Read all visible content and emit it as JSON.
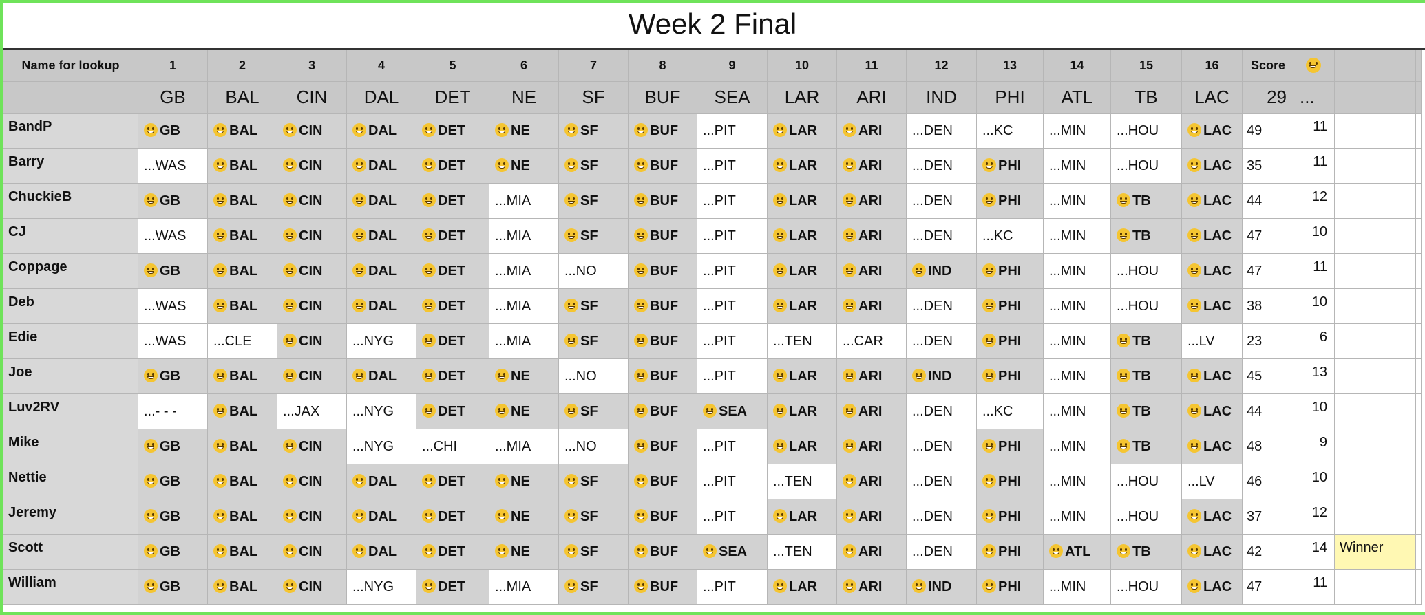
{
  "title": "Week 2 Final",
  "columns": {
    "name_header": "Name for lookup",
    "game_numbers": [
      "1",
      "2",
      "3",
      "4",
      "5",
      "6",
      "7",
      "8",
      "9",
      "10",
      "11",
      "12",
      "13",
      "14",
      "15",
      "16"
    ],
    "score_header": "Score",
    "smiley_header_icon": "grinning-face-icon",
    "winners": [
      "GB",
      "BAL",
      "CIN",
      "DAL",
      "DET",
      "NE",
      "SF",
      "BUF",
      "SEA",
      "LAR",
      "ARI",
      "IND",
      "PHI",
      "ATL",
      "TB",
      "LAC"
    ],
    "actual_score": "29",
    "ellipsis": "..."
  },
  "rows": [
    {
      "name": "BandP",
      "picks": [
        "GB",
        "BAL",
        "CIN",
        "DAL",
        "DET",
        "NE",
        "SF",
        "BUF",
        "...PIT",
        "LAR",
        "ARI",
        "...DEN",
        "...KC",
        "...MIN",
        "...HOU",
        "LAC"
      ],
      "score": "49",
      "correct": "11",
      "note": ""
    },
    {
      "name": "Barry",
      "picks": [
        "...WAS",
        "BAL",
        "CIN",
        "DAL",
        "DET",
        "NE",
        "SF",
        "BUF",
        "...PIT",
        "LAR",
        "ARI",
        "...DEN",
        "PHI",
        "...MIN",
        "...HOU",
        "LAC"
      ],
      "score": "35",
      "correct": "11",
      "note": ""
    },
    {
      "name": "ChuckieB",
      "picks": [
        "GB",
        "BAL",
        "CIN",
        "DAL",
        "DET",
        "...MIA",
        "SF",
        "BUF",
        "...PIT",
        "LAR",
        "ARI",
        "...DEN",
        "PHI",
        "...MIN",
        "TB",
        "LAC"
      ],
      "score": "44",
      "correct": "12",
      "note": ""
    },
    {
      "name": "CJ",
      "picks": [
        "...WAS",
        "BAL",
        "CIN",
        "DAL",
        "DET",
        "...MIA",
        "SF",
        "BUF",
        "...PIT",
        "LAR",
        "ARI",
        "...DEN",
        "...KC",
        "...MIN",
        "TB",
        "LAC"
      ],
      "score": "47",
      "correct": "10",
      "note": ""
    },
    {
      "name": "Coppage",
      "picks": [
        "GB",
        "BAL",
        "CIN",
        "DAL",
        "DET",
        "...MIA",
        "...NO",
        "BUF",
        "...PIT",
        "LAR",
        "ARI",
        "IND",
        "PHI",
        "...MIN",
        "...HOU",
        "LAC"
      ],
      "score": "47",
      "correct": "11",
      "note": ""
    },
    {
      "name": "Deb",
      "picks": [
        "...WAS",
        "BAL",
        "CIN",
        "DAL",
        "DET",
        "...MIA",
        "SF",
        "BUF",
        "...PIT",
        "LAR",
        "ARI",
        "...DEN",
        "PHI",
        "...MIN",
        "...HOU",
        "LAC"
      ],
      "score": "38",
      "correct": "10",
      "note": ""
    },
    {
      "name": "Edie",
      "picks": [
        "...WAS",
        "...CLE",
        "CIN",
        "...NYG",
        "DET",
        "...MIA",
        "SF",
        "BUF",
        "...PIT",
        "...TEN",
        "...CAR",
        "...DEN",
        "PHI",
        "...MIN",
        "TB",
        "...LV"
      ],
      "score": "23",
      "correct": "6",
      "note": ""
    },
    {
      "name": "Joe",
      "picks": [
        "GB",
        "BAL",
        "CIN",
        "DAL",
        "DET",
        "NE",
        "...NO",
        "BUF",
        "...PIT",
        "LAR",
        "ARI",
        "IND",
        "PHI",
        "...MIN",
        "TB",
        "LAC"
      ],
      "score": "45",
      "correct": "13",
      "note": ""
    },
    {
      "name": "Luv2RV",
      "picks": [
        "...- - -",
        "BAL",
        "...JAX",
        "...NYG",
        "DET",
        "NE",
        "SF",
        "BUF",
        "SEA",
        "LAR",
        "ARI",
        "...DEN",
        "...KC",
        "...MIN",
        "TB",
        "LAC"
      ],
      "score": "44",
      "correct": "10",
      "note": ""
    },
    {
      "name": "Mike",
      "picks": [
        "GB",
        "BAL",
        "CIN",
        "...NYG",
        "...CHI",
        "...MIA",
        "...NO",
        "BUF",
        "...PIT",
        "LAR",
        "ARI",
        "...DEN",
        "PHI",
        "...MIN",
        "TB",
        "LAC"
      ],
      "score": "48",
      "correct": "9",
      "note": ""
    },
    {
      "name": "Nettie",
      "picks": [
        "GB",
        "BAL",
        "CIN",
        "DAL",
        "DET",
        "NE",
        "SF",
        "BUF",
        "...PIT",
        "...TEN",
        "ARI",
        "...DEN",
        "PHI",
        "...MIN",
        "...HOU",
        "...LV"
      ],
      "score": "46",
      "correct": "10",
      "note": ""
    },
    {
      "name": "Jeremy",
      "picks": [
        "GB",
        "BAL",
        "CIN",
        "DAL",
        "DET",
        "NE",
        "SF",
        "BUF",
        "...PIT",
        "LAR",
        "ARI",
        "...DEN",
        "PHI",
        "...MIN",
        "...HOU",
        "LAC"
      ],
      "score": "37",
      "correct": "12",
      "note": ""
    },
    {
      "name": "Scott",
      "picks": [
        "GB",
        "BAL",
        "CIN",
        "DAL",
        "DET",
        "NE",
        "SF",
        "BUF",
        "SEA",
        "...TEN",
        "ARI",
        "...DEN",
        "PHI",
        "ATL",
        "TB",
        "LAC"
      ],
      "score": "42",
      "correct": "14",
      "note": "Winner"
    },
    {
      "name": "William",
      "picks": [
        "GB",
        "BAL",
        "CIN",
        "...NYG",
        "DET",
        "...MIA",
        "SF",
        "BUF",
        "...PIT",
        "LAR",
        "ARI",
        "IND",
        "PHI",
        "...MIN",
        "...HOU",
        "LAC"
      ],
      "score": "47",
      "correct": "11",
      "note": ""
    }
  ],
  "colors": {
    "frame_border": "#6fe35a",
    "header_bg": "#c8c8c8",
    "correct_pick_bg": "#d2d2d2",
    "winner_highlight": "#fff8b3"
  },
  "pick_icon": "grinning-face-icon"
}
